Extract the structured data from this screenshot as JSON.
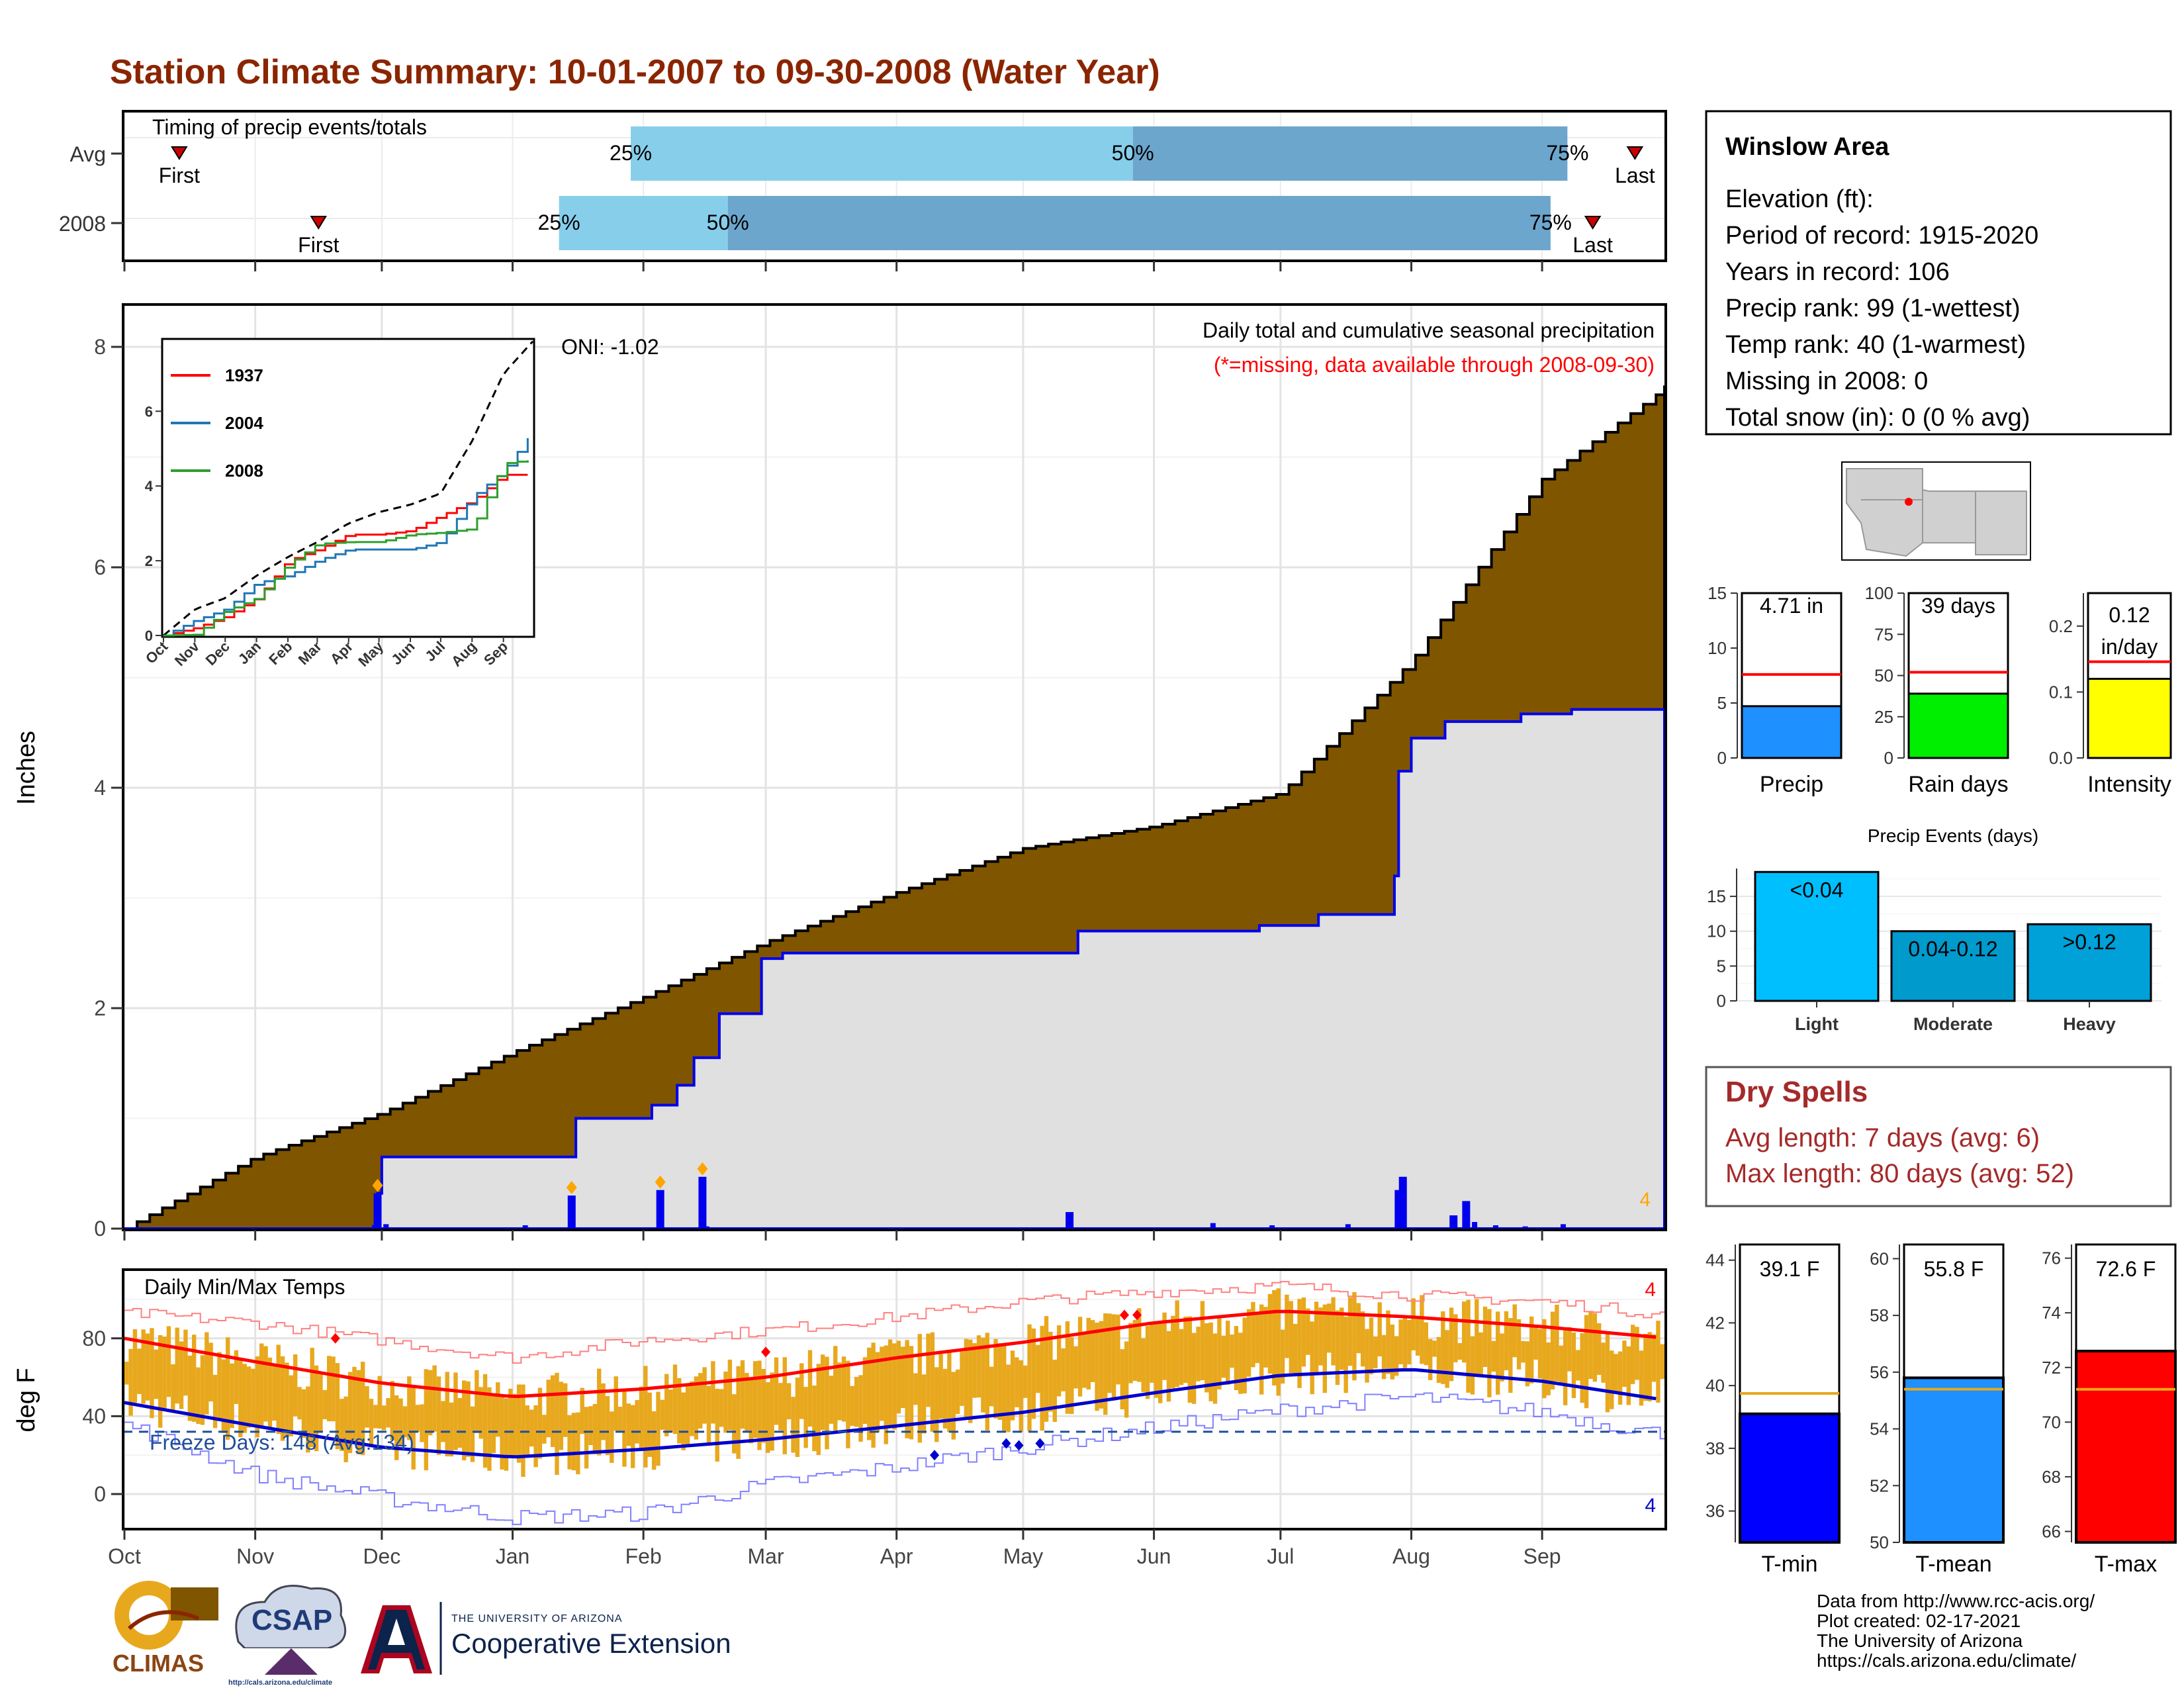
{
  "title": "Station Climate Summary: 10-01-2007 to 09-30-2008 (Water Year)",
  "colors": {
    "title": "#8B2500",
    "cumulative_fill": "#7F5500",
    "avg_area": "#E0E0E0",
    "precip_line": "#0000EE",
    "light_blue": "#87CEEB",
    "mid_blue": "#6CA6CD",
    "bar_yellow": "#E8A81E",
    "tmax_line": "#FF0000",
    "tmin_line": "#0000CD",
    "dry_spell": "#A52A2A",
    "precip_gauge": "#1E90FF",
    "rain_gauge": "#00EE00",
    "intensity_gauge": "#FFFF00",
    "tmin_gauge": "#0000FF",
    "tmean_gauge": "#1E90FF",
    "tmax_gauge": "#FF0000"
  },
  "timing": {
    "title": "Timing of precip events/totals",
    "rows": [
      "Avg",
      "2008"
    ],
    "first_label": "First",
    "last_label": "Last",
    "pct_labels": [
      "25%",
      "50%",
      "75%"
    ],
    "avg": {
      "first": 13,
      "p25": 120,
      "p50": 239,
      "p75": 342,
      "last": 358
    },
    "y2008": {
      "first": 46,
      "p25": 103,
      "p50": 143,
      "p75": 338,
      "last": 348
    }
  },
  "main": {
    "ylabel": "Inches",
    "yticks": [
      "0",
      "2",
      "4",
      "6",
      "8"
    ],
    "note_title": "Daily total and cumulative seasonal precipitation",
    "note_missing": "(*=missing, data available through 2008-09-30)",
    "oni": "ONI: -1.02",
    "corner_count": "4"
  },
  "inset": {
    "series": [
      {
        "name": "1937",
        "color": "#FF0000"
      },
      {
        "name": "2004",
        "color": "#1F77B4"
      },
      {
        "name": "2008",
        "color": "#2CA02C"
      }
    ],
    "yticks": [
      "0",
      "2",
      "4",
      "6"
    ],
    "months": [
      "Oct",
      "Nov",
      "Dec",
      "Jan",
      "Feb",
      "Mar",
      "Apr",
      "May",
      "Jun",
      "Jul",
      "Aug",
      "Sep"
    ]
  },
  "temps": {
    "title": "Daily Min/Max Temps",
    "ylabel": "deg F",
    "yticks": [
      "0",
      "40",
      "80"
    ],
    "freeze": "Freeze Days: 148 (Avg:134)",
    "top_count": "4",
    "bottom_count": "4"
  },
  "months": [
    "Oct",
    "Nov",
    "Dec",
    "Jan",
    "Feb",
    "Mar",
    "Apr",
    "May",
    "Jun",
    "Jul",
    "Aug",
    "Sep"
  ],
  "station": {
    "name": "Winslow Area",
    "lines": [
      "Elevation (ft):",
      "Period of record: 1915-2020",
      "Years in record: 106",
      "Precip rank: 99 (1-wettest)",
      "Temp rank: 40 (1-warmest)",
      "Missing in 2008: 0",
      "Total snow (in): 0 (0 % avg)"
    ]
  },
  "gauges": [
    {
      "label": "Precip",
      "value_text": "4.71 in",
      "value": 4.71,
      "avg": 7.6,
      "max": 15,
      "ticks": [
        "0",
        "5",
        "10",
        "15"
      ],
      "color_key": "precip_gauge"
    },
    {
      "label": "Rain days",
      "value_text": "39 days",
      "value": 39,
      "avg": 52,
      "max": 100,
      "ticks": [
        "0",
        "25",
        "50",
        "75",
        "100"
      ],
      "color_key": "rain_gauge"
    },
    {
      "label": "Intensity",
      "value_text": "0.12 in/day",
      "value": 0.12,
      "avg": 0.146,
      "max": 0.25,
      "ticks": [
        "0.0",
        "0.1",
        "0.2"
      ],
      "color_key": "intensity_gauge"
    }
  ],
  "events": {
    "title": "Precip Events (days)",
    "yticks": [
      "0",
      "5",
      "10",
      "15"
    ],
    "categories": [
      "Light",
      "Moderate",
      "Heavy"
    ],
    "labels": [
      "<0.04",
      "0.04-0.12",
      ">0.12"
    ],
    "values": [
      18.5,
      10,
      11
    ],
    "colors": [
      "#00BFFF",
      "#009ACD",
      "#00A0D8"
    ]
  },
  "dry": {
    "title": "Dry Spells",
    "avg_line": "Avg length: 7 days (avg: 6)",
    "max_line": "Max length: 80 days (avg: 52)"
  },
  "temp_gauges": [
    {
      "label": "T-min",
      "value_text": "39.1 F",
      "value": 39.1,
      "avg": 39.75,
      "min": 35,
      "max": 44.5,
      "ticks": [
        "36",
        "38",
        "40",
        "42",
        "44"
      ],
      "color_key": "tmin_gauge"
    },
    {
      "label": "T-mean",
      "value_text": "55.8 F",
      "value": 55.8,
      "avg": 55.4,
      "min": 50,
      "max": 60.5,
      "ticks": [
        "50",
        "52",
        "54",
        "56",
        "58",
        "60"
      ],
      "color_key": "tmean_gauge"
    },
    {
      "label": "T-max",
      "value_text": "72.6 F",
      "value": 72.6,
      "avg": 71.2,
      "min": 65.6,
      "max": 76.5,
      "ticks": [
        "66",
        "68",
        "70",
        "72",
        "74",
        "76"
      ],
      "color_key": "tmax_gauge"
    }
  ],
  "footer": {
    "credits": [
      "Data from http://www.rcc-acis.org/",
      "Plot created: 02-17-2021",
      "The University of Arizona",
      "https://cals.arizona.edu/climate/"
    ],
    "logo_climas": "CLIMAS",
    "logo_csap": "CSAP",
    "logo_csap_url": "http://cals.arizona.edu/climate",
    "ua_small": "THE UNIVERSITY OF ARIZONA",
    "ua_big": "Cooperative Extension"
  },
  "chart_data": [
    {
      "type": "area",
      "title": "Daily total and cumulative seasonal precipitation",
      "ylabel": "Inches",
      "ylim": [
        0,
        8.5
      ],
      "x": [
        "Oct",
        "Nov",
        "Dec",
        "Jan",
        "Feb",
        "Mar",
        "Apr",
        "May",
        "Jun",
        "Jul",
        "Aug",
        "Sep",
        "Sep 30"
      ],
      "series": [
        {
          "name": "cumulative average",
          "values": [
            0,
            0.65,
            1.05,
            1.6,
            2.1,
            2.6,
            3.05,
            3.45,
            3.65,
            3.95,
            5.15,
            6.8,
            7.65
          ]
        },
        {
          "name": "cumulative 2008",
          "values": [
            0,
            0.02,
            0.65,
            1.0,
            1.9,
            2.47,
            2.5,
            2.5,
            2.7,
            2.75,
            2.85,
            4.7,
            4.71
          ]
        }
      ],
      "daily_precip_events": [
        {
          "date": "Nov 30",
          "value": 0.32
        },
        {
          "date": "Jan 15",
          "value": 0.3
        },
        {
          "date": "Feb 05",
          "value": 0.35
        },
        {
          "date": "Feb 15",
          "value": 0.47
        },
        {
          "date": "May 13",
          "value": 0.15
        },
        {
          "date": "Jul 30",
          "value": 0.35
        },
        {
          "date": "Jul 31",
          "value": 0.47
        },
        {
          "date": "Aug 12",
          "value": 0.12
        },
        {
          "date": "Aug 15",
          "value": 0.25
        }
      ],
      "oni": -1.02
    },
    {
      "type": "line",
      "title": "",
      "ylim": [
        0,
        8
      ],
      "x": [
        "Oct",
        "Nov",
        "Dec",
        "Jan",
        "Feb",
        "Mar",
        "Apr",
        "May",
        "Jun",
        "Jul",
        "Aug",
        "Sep",
        "Sep 30"
      ],
      "series": [
        {
          "name": "average",
          "values": [
            0,
            0.7,
            1.0,
            1.6,
            2.1,
            2.5,
            3.0,
            3.3,
            3.5,
            3.8,
            5.2,
            7.0,
            7.9
          ]
        },
        {
          "name": "1937",
          "values": [
            0,
            0.2,
            0.5,
            1.0,
            2.0,
            2.3,
            2.7,
            2.7,
            2.8,
            3.2,
            3.6,
            4.3,
            4.3
          ]
        },
        {
          "name": "2004",
          "values": [
            0,
            0.4,
            0.7,
            1.4,
            1.6,
            2.0,
            2.3,
            2.3,
            2.3,
            2.5,
            3.7,
            4.4,
            5.5
          ]
        },
        {
          "name": "2008",
          "values": [
            0,
            0.02,
            0.65,
            1.0,
            1.9,
            2.45,
            2.5,
            2.5,
            2.7,
            2.75,
            2.85,
            4.6,
            4.71
          ]
        }
      ]
    },
    {
      "type": "line",
      "title": "Daily Min/Max Temps",
      "ylabel": "deg F",
      "ylim": [
        -20,
        110
      ],
      "x": [
        "Oct",
        "Nov",
        "Dec",
        "Jan",
        "Feb",
        "Mar",
        "Apr",
        "May",
        "Jun",
        "Jul",
        "Aug",
        "Sep",
        "Sep 30"
      ],
      "series": [
        {
          "name": "normal max",
          "values": [
            80,
            68,
            57,
            50,
            54,
            60,
            70,
            78,
            88,
            94,
            91,
            86,
            80
          ]
        },
        {
          "name": "normal min",
          "values": [
            47,
            35,
            24,
            19,
            23,
            28,
            35,
            42,
            52,
            61,
            64,
            58,
            48
          ]
        },
        {
          "name": "record max",
          "values": [
            93,
            88,
            79,
            70,
            79,
            84,
            91,
            99,
            104,
            107,
            102,
            99,
            92
          ]
        },
        {
          "name": "record min",
          "values": [
            36,
            10,
            -2,
            -12,
            -10,
            5,
            14,
            24,
            34,
            43,
            50,
            42,
            30
          ]
        }
      ],
      "freeze_threshold": 32,
      "freeze_days": 148,
      "freeze_days_avg": 134
    }
  ]
}
